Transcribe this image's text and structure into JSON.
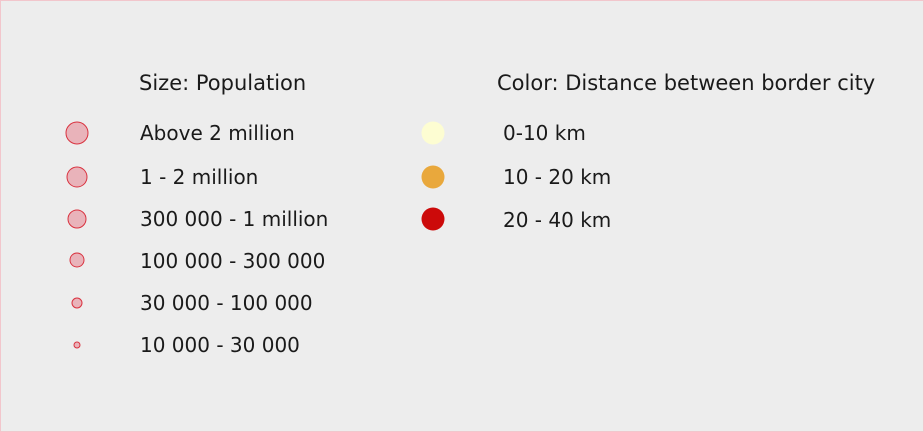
{
  "size_legend": {
    "heading": "Size: Population",
    "circle_fill": "#e9b3ba",
    "circle_stroke": "#d9323f",
    "items": [
      {
        "label": "Above 2 million",
        "icon": "circle-large-icon"
      },
      {
        "label": "1 - 2 million",
        "icon": "circle-medium-large-icon"
      },
      {
        "label": "300 000 - 1 million",
        "icon": "circle-medium-icon"
      },
      {
        "label": "100 000 - 300 000",
        "icon": "circle-small-medium-icon"
      },
      {
        "label": "30 000 - 100 000",
        "icon": "circle-small-icon"
      },
      {
        "label": "10 000 - 30 000",
        "icon": "circle-tiny-icon"
      }
    ]
  },
  "color_legend": {
    "heading": "Color: Distance between border city",
    "items": [
      {
        "label": "0-10 km",
        "color": "#fdfdd2",
        "icon": "circle-pale-yellow-icon"
      },
      {
        "label": "10 - 20 km",
        "color": "#e9a83c",
        "icon": "circle-orange-icon"
      },
      {
        "label": "20 - 40 km",
        "color": "#cc0a0a",
        "icon": "circle-red-icon"
      }
    ]
  }
}
